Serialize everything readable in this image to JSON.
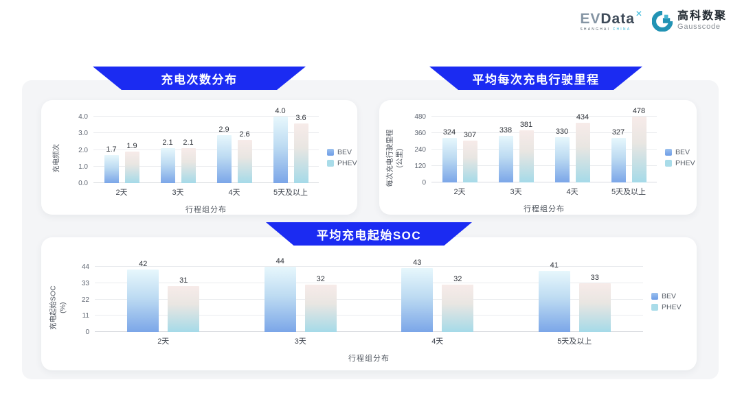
{
  "header": {
    "brand": {
      "name_prefix": "EV",
      "name_suffix": "Data",
      "superscript": "✕",
      "tagline_left": "SHANGHAI",
      "tagline_right": "CHINA"
    },
    "partner": {
      "name_cn": "高科数聚",
      "name_en": "Gausscode"
    }
  },
  "colors": {
    "banner_blue": "#1b2bf2",
    "accent_cyan": "#35b7da",
    "partner_teal": "#2293b4",
    "bev_gradient_top": "#e7f7fc",
    "bev_gradient_bottom": "#7ba6e8",
    "phev_gradient_top": "#f7ebe9",
    "phev_gradient_bottom": "#a5dae8",
    "card_bg": "#ffffff",
    "panel_bg": "#f4f5f7"
  },
  "chart_data": [
    {
      "type": "bar",
      "title": "充电次数分布",
      "categories": [
        "2天",
        "3天",
        "4天",
        "5天及以上"
      ],
      "series": [
        {
          "name": "BEV",
          "values": [
            1.7,
            2.1,
            2.9,
            4.0
          ],
          "labels": [
            "1.7",
            "2.1",
            "2.9",
            "4.0"
          ]
        },
        {
          "name": "PHEV",
          "values": [
            1.9,
            2.1,
            2.6,
            3.6
          ],
          "labels": [
            "1.9",
            "2.1",
            "2.6",
            "3.6"
          ]
        }
      ],
      "xlabel": "行程组分布",
      "ylabel": "充电频次",
      "ylabel_sub": "",
      "yticks": [
        0,
        1,
        2,
        3,
        4
      ],
      "ytick_labels": [
        "0.0",
        "1.0",
        "2.0",
        "3.0",
        "4.0"
      ],
      "ylim": [
        0,
        4
      ],
      "grid": true,
      "legend_position": "right"
    },
    {
      "type": "bar",
      "title": "平均每次充电行驶里程",
      "categories": [
        "2天",
        "3天",
        "4天",
        "5天及以上"
      ],
      "series": [
        {
          "name": "BEV",
          "values": [
            324,
            338,
            330,
            327
          ],
          "labels": [
            "324",
            "338",
            "330",
            "327"
          ]
        },
        {
          "name": "PHEV",
          "values": [
            307,
            381,
            434,
            478
          ],
          "labels": [
            "307",
            "381",
            "434",
            "478"
          ]
        }
      ],
      "xlabel": "行程组分布",
      "ylabel": "每次充电行驶里程",
      "ylabel_sub": "(公里)",
      "yticks": [
        0,
        120,
        240,
        360,
        480
      ],
      "ytick_labels": [
        "0",
        "120",
        "240",
        "360",
        "480"
      ],
      "ylim": [
        0,
        480
      ],
      "grid": true,
      "legend_position": "right"
    },
    {
      "type": "bar",
      "title": "平均充电起始SOC",
      "categories": [
        "2天",
        "3天",
        "4天",
        "5天及以上"
      ],
      "series": [
        {
          "name": "BEV",
          "values": [
            42,
            44,
            43,
            41
          ],
          "labels": [
            "42",
            "44",
            "43",
            "41"
          ]
        },
        {
          "name": "PHEV",
          "values": [
            31,
            32,
            32,
            33
          ],
          "labels": [
            "31",
            "32",
            "32",
            "33"
          ]
        }
      ],
      "xlabel": "行程组分布",
      "ylabel": "充电起始SOC",
      "ylabel_sub": "(%)",
      "yticks": [
        0,
        11,
        22,
        33,
        44
      ],
      "ytick_labels": [
        "0",
        "11",
        "22",
        "33",
        "44"
      ],
      "ylim": [
        0,
        44
      ],
      "grid": true,
      "legend_position": "right"
    }
  ]
}
